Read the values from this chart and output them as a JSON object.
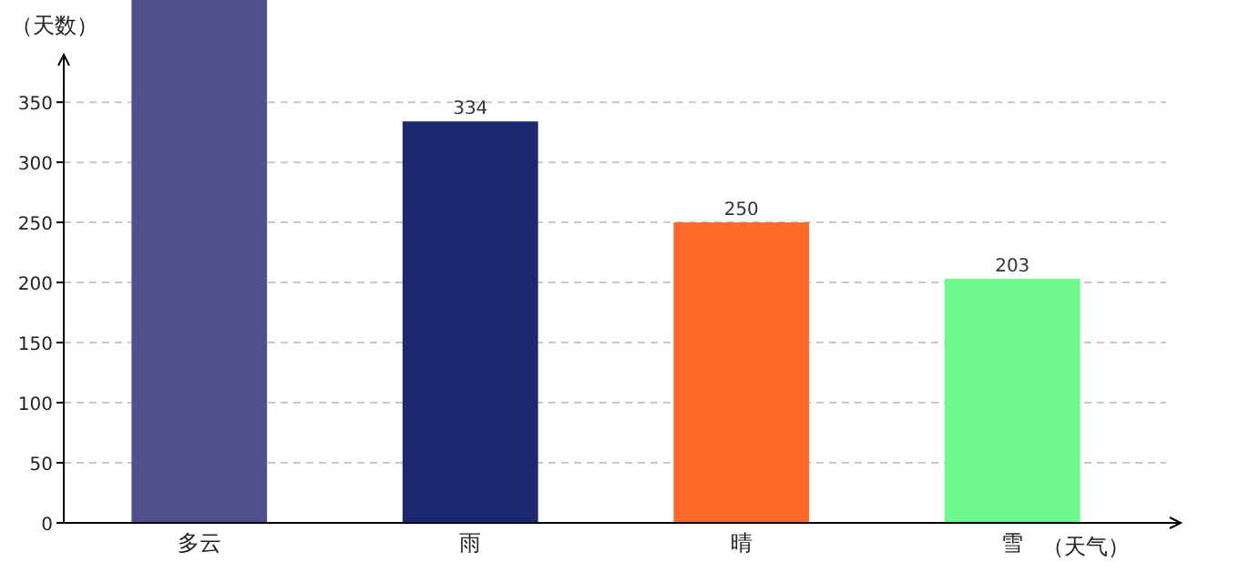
{
  "chart_data": {
    "type": "bar",
    "xlabel": "（天气）",
    "ylabel": "（天数）",
    "categories": [
      "多云",
      "雨",
      "晴",
      "雪"
    ],
    "values": [
      435,
      334,
      250,
      203
    ],
    "colors": [
      "#524f8f",
      "#1c2870",
      "#fd6a29",
      "#6cf78f"
    ],
    "value_labels": [
      null,
      "334",
      "250",
      "203"
    ],
    "ylim": [
      0,
      435
    ],
    "yticks": [
      0,
      50,
      100,
      150,
      200,
      250,
      300,
      350
    ],
    "grid": "y"
  }
}
